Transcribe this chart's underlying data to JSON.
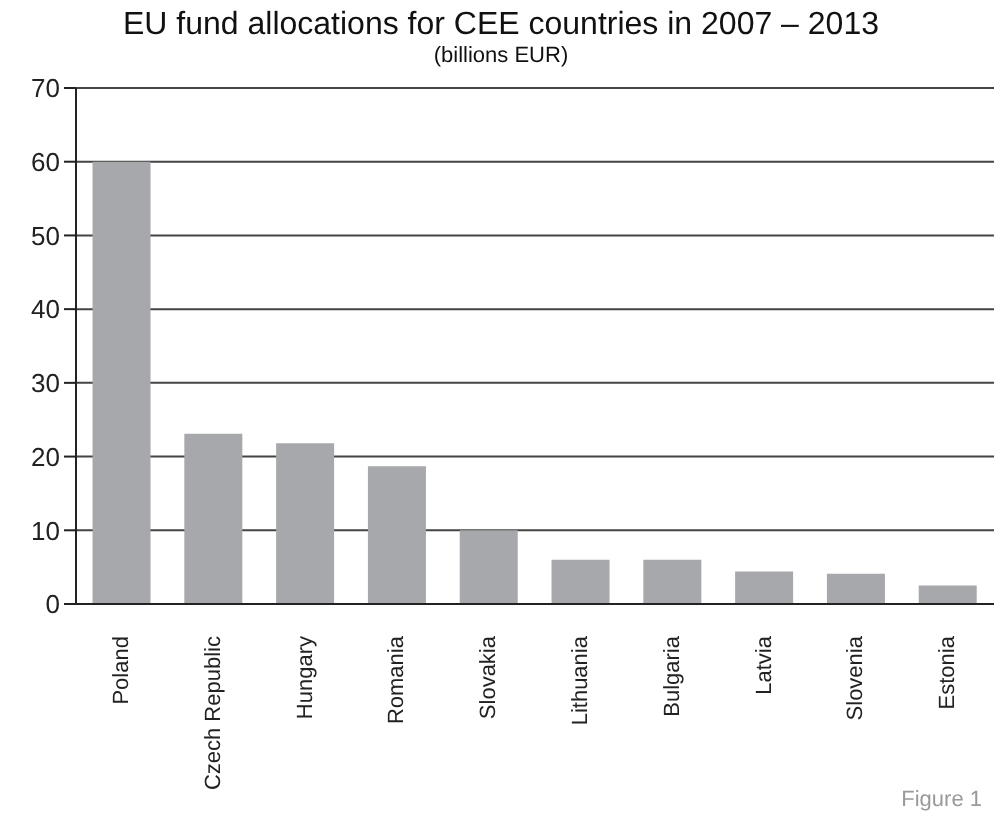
{
  "chart_data": {
    "type": "bar",
    "title": "EU fund allocations for CEE countries in 2007 – 2013",
    "subtitle": "(billions EUR)",
    "categories": [
      "Poland",
      "Czech Republic",
      "Hungary",
      "Romania",
      "Slovakia",
      "Lithuania",
      "Bulgaria",
      "Latvia",
      "Slovenia",
      "Estonia"
    ],
    "values": [
      60,
      23.1,
      21.8,
      18.7,
      10,
      6,
      6,
      4.4,
      4.1,
      2.5
    ],
    "color": "#a7a8ab",
    "ylim": [
      0,
      70
    ],
    "yticks": [
      0,
      10,
      20,
      30,
      40,
      50,
      60,
      70
    ],
    "grid": "y",
    "annotations": [
      "Figure 1"
    ]
  }
}
